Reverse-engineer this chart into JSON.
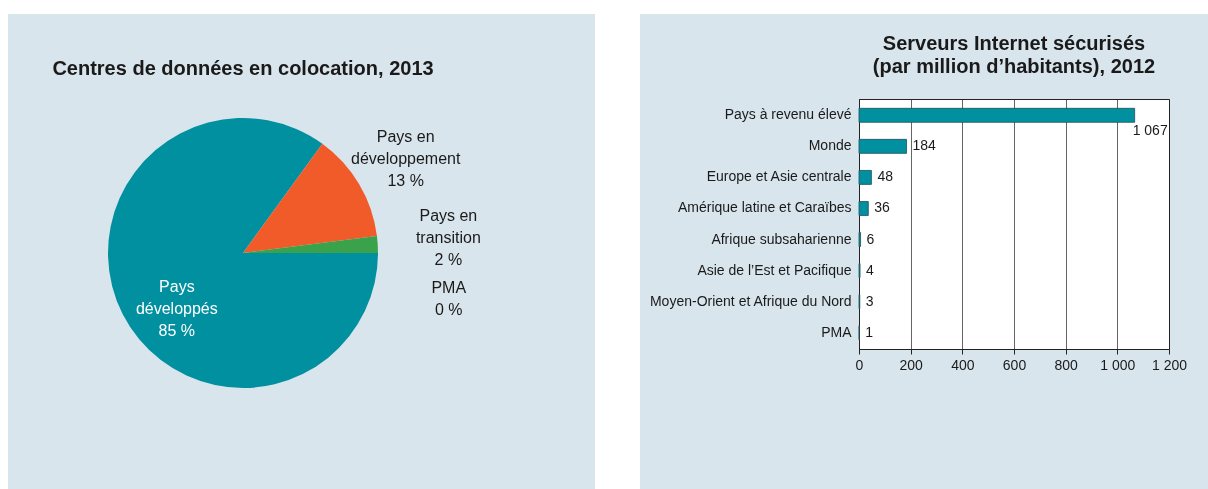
{
  "chart_data": [
    {
      "type": "pie",
      "title": "Centres de données en colocation, 2013",
      "categories": [
        "Pays développés",
        "Pays en développement",
        "Pays en transition",
        "PMA"
      ],
      "values": [
        85,
        13,
        2,
        0
      ],
      "colors": [
        "#0090a0",
        "#f15a29",
        "#3aa24a",
        "#0090a0"
      ],
      "value_labels": [
        "85 %",
        "13 %",
        "2 %",
        "0 %"
      ],
      "legend": false
    },
    {
      "type": "bar",
      "orientation": "horizontal",
      "title": "Serveurs Internet sécurisés",
      "subtitle": "(par million d’habitants), 2012",
      "categories": [
        "Pays à revenu élevé",
        "Monde",
        "Europe et Asie centrale",
        "Amérique latine et Caraïbes",
        "Afrique subsaharienne",
        "Asie de l’Est et Pacifique",
        "Moyen-Orient et Afrique du Nord",
        "PMA"
      ],
      "values": [
        1067,
        184,
        48,
        36,
        6,
        4,
        3,
        1
      ],
      "color": "#0090a0",
      "value_labels": [
        "1 067",
        "184",
        "48",
        "36",
        "6",
        "4",
        "3",
        "1"
      ],
      "xlim": [
        0,
        1200
      ],
      "xticks": [
        0,
        200,
        400,
        600,
        800,
        {
          "value": 1000,
          "label": "1 000"
        },
        {
          "value": 1200,
          "label": "1 200"
        }
      ],
      "grid": "x"
    }
  ]
}
